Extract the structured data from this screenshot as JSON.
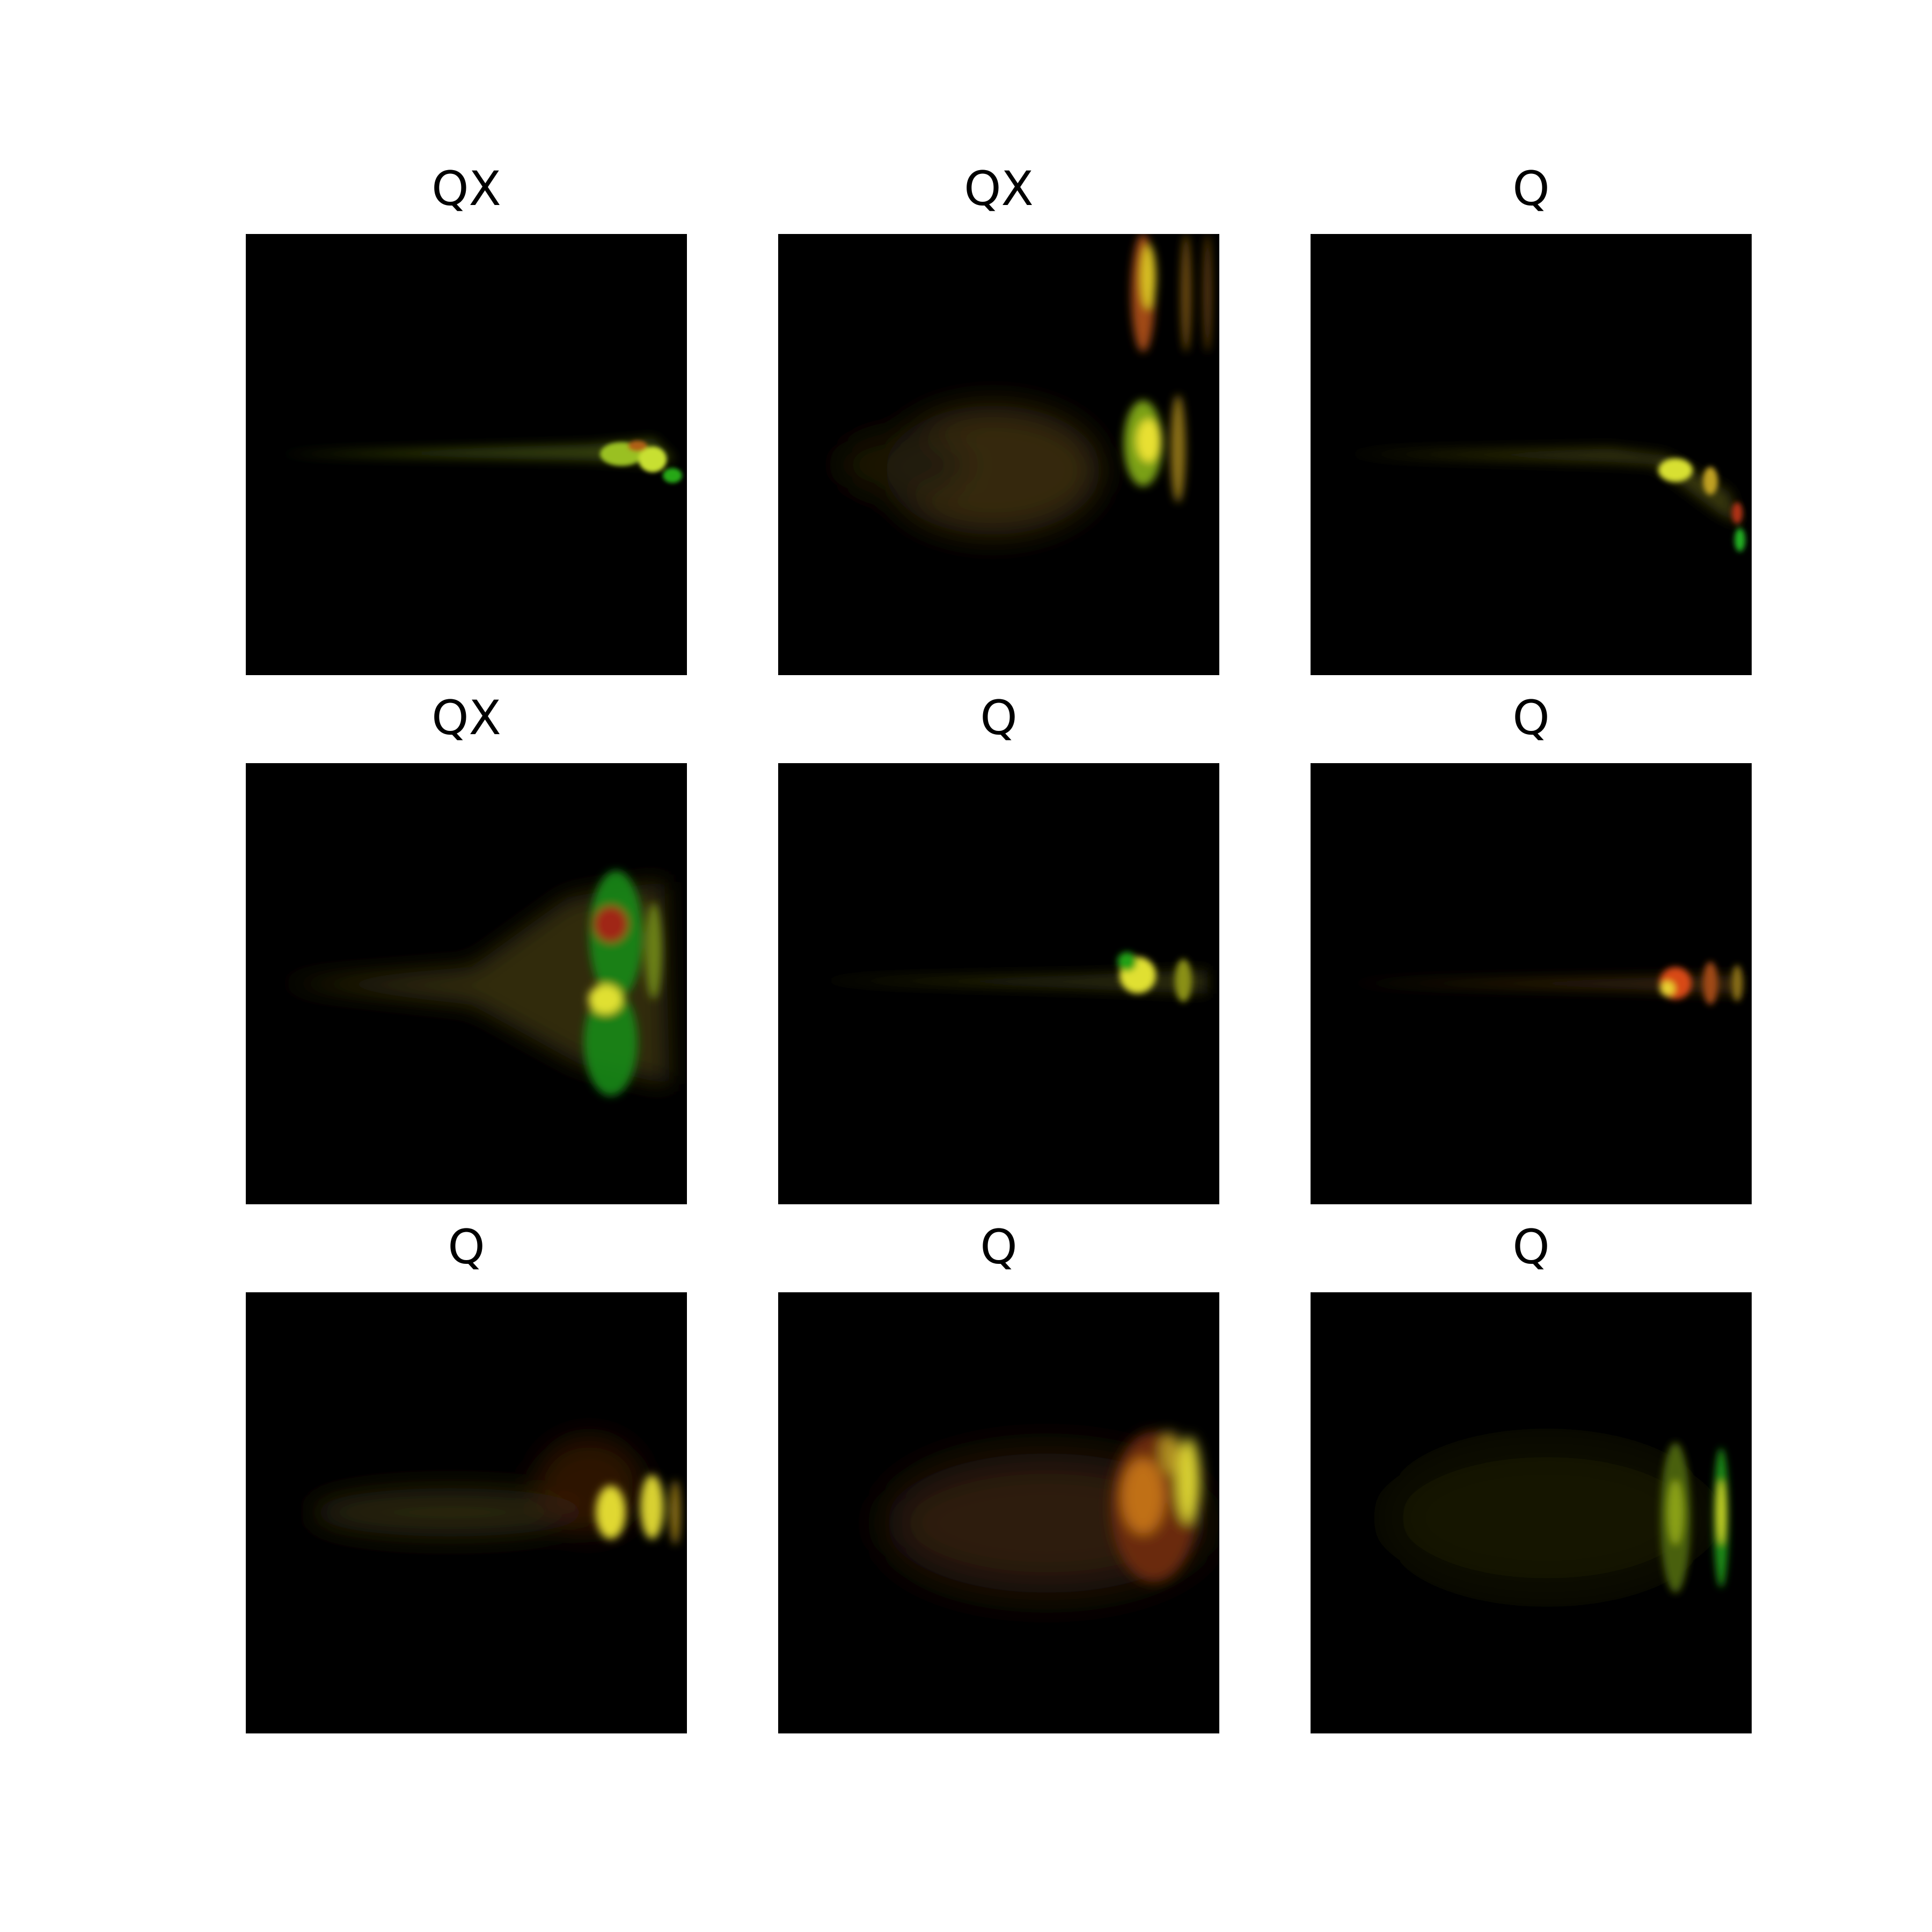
{
  "figure": {
    "panels": [
      {
        "title": "QX"
      },
      {
        "title": "QX"
      },
      {
        "title": "Q"
      },
      {
        "title": "QX"
      },
      {
        "title": "Q"
      },
      {
        "title": "Q"
      },
      {
        "title": "Q"
      },
      {
        "title": "Q"
      },
      {
        "title": "Q"
      }
    ],
    "colors": {
      "background": "#000000",
      "page": "#ffffff",
      "green_channel": "#22c81e",
      "red_channel": "#c8321e",
      "highlight": "#f0f028"
    }
  }
}
